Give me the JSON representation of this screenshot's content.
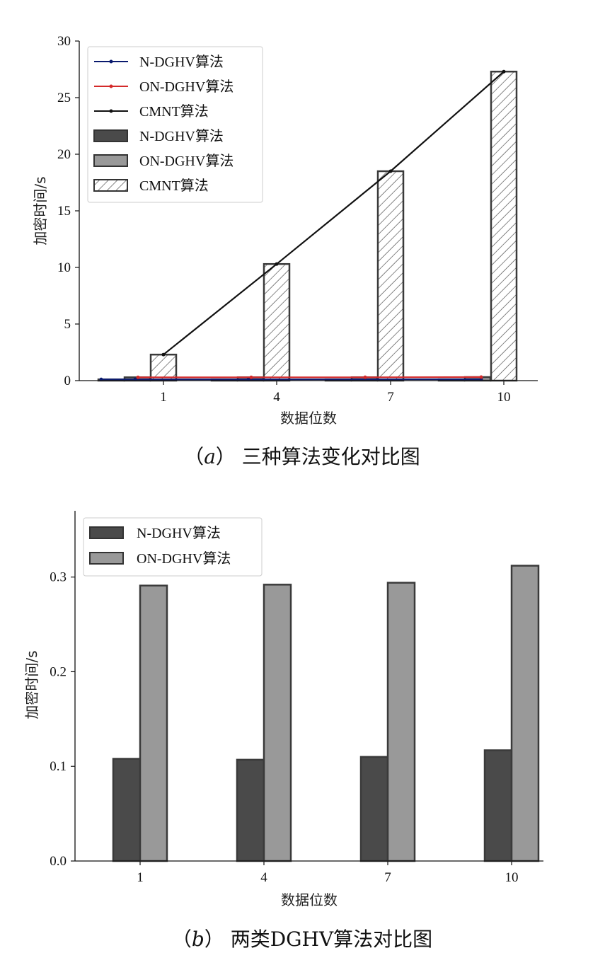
{
  "colors": {
    "n_dghv_bar": "#4a4a4a",
    "on_dghv_bar": "#999999",
    "bar_edge": "#3a3a3a",
    "n_dghv_line": "#0a1a6e",
    "on_dghv_line": "#d42a2a",
    "cmnt_line": "#111111"
  },
  "chart_data": [
    {
      "type": "bar+line",
      "caption_label": "a",
      "caption_text": "三种算法变化对比图",
      "xlabel": "数据位数",
      "ylabel": "加密时间/s",
      "categories": [
        "1",
        "4",
        "7",
        "10"
      ],
      "ylim": [
        0,
        30
      ],
      "yticks": [
        "0",
        "5",
        "10",
        "15",
        "20",
        "25",
        "30"
      ],
      "legend_position": "upper-left",
      "lines": [
        {
          "name": "N-DGHV算法",
          "values": [
            0.108,
            0.107,
            0.11,
            0.117
          ]
        },
        {
          "name": "ON-DGHV算法",
          "values": [
            0.291,
            0.292,
            0.294,
            0.312
          ]
        },
        {
          "name": "CMNT算法",
          "values": [
            2.3,
            10.3,
            18.5,
            27.3
          ]
        }
      ],
      "bars": [
        {
          "name": "N-DGHV算法",
          "values": [
            0.108,
            0.107,
            0.11,
            0.117
          ]
        },
        {
          "name": "ON-DGHV算法",
          "values": [
            0.291,
            0.292,
            0.294,
            0.312
          ]
        },
        {
          "name": "CMNT算法",
          "values": [
            2.3,
            10.3,
            18.5,
            27.3
          ],
          "hatch": "///"
        }
      ]
    },
    {
      "type": "bar",
      "caption_label": "b",
      "caption_text": "两类DGHV算法对比图",
      "xlabel": "数据位数",
      "ylabel": "加密时间/s",
      "categories": [
        "1",
        "4",
        "7",
        "10"
      ],
      "ylim": [
        0,
        0.37
      ],
      "yticks": [
        "0.0",
        "0.1",
        "0.2",
        "0.3"
      ],
      "legend_position": "upper-left",
      "series": [
        {
          "name": "N-DGHV算法",
          "values": [
            0.108,
            0.107,
            0.11,
            0.117
          ]
        },
        {
          "name": "ON-DGHV算法",
          "values": [
            0.291,
            0.292,
            0.294,
            0.312
          ]
        }
      ]
    }
  ]
}
